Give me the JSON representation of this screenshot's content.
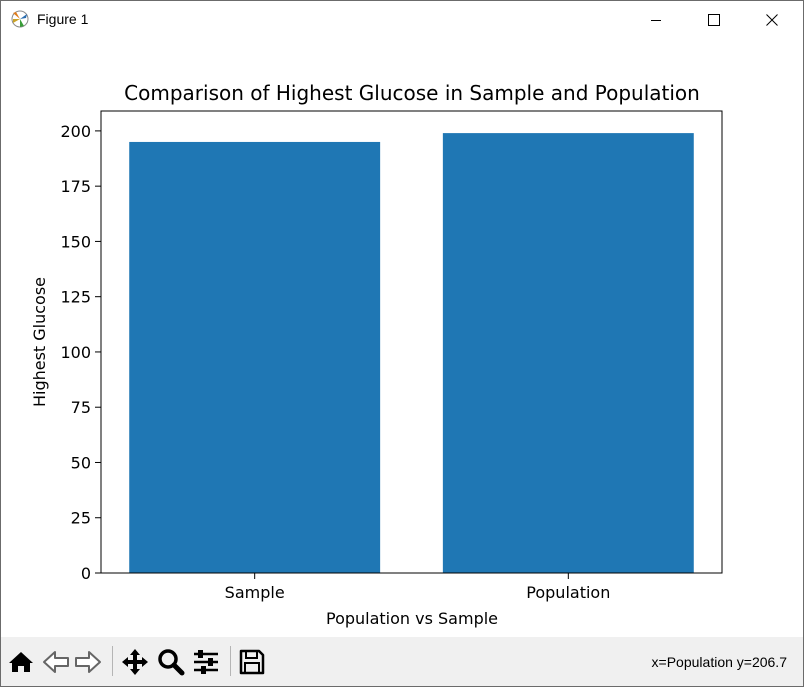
{
  "window": {
    "title": "Figure 1",
    "controls": [
      "minimize-icon",
      "maximize-icon",
      "close-icon"
    ]
  },
  "toolbar": {
    "buttons": [
      "home-icon",
      "back-icon",
      "forward-icon",
      "pan-icon",
      "zoom-icon",
      "configure-subplots-icon",
      "save-icon"
    ],
    "coords_text": "x=Population y=206.7"
  },
  "colors": {
    "bar": "#1f77b4"
  },
  "chart_data": {
    "type": "bar",
    "title": "Comparison of Highest Glucose in Sample and Population",
    "xlabel": "Population vs Sample",
    "ylabel": "Highest Glucose",
    "categories": [
      "Sample",
      "Population"
    ],
    "values": [
      195,
      199
    ],
    "ylim": [
      0,
      209
    ],
    "yticks": [
      0,
      25,
      50,
      75,
      100,
      125,
      150,
      175,
      200
    ],
    "grid": false
  }
}
